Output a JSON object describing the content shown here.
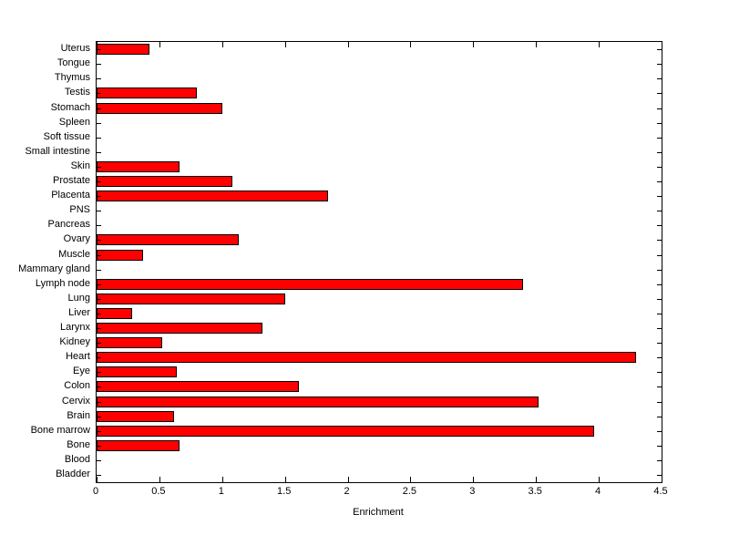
{
  "chart_data": {
    "type": "bar",
    "orientation": "horizontal",
    "title": "",
    "xlabel": "Enrichment",
    "ylabel": "",
    "xlim": [
      0,
      4.5
    ],
    "xticks": [
      0,
      0.5,
      1,
      1.5,
      2,
      2.5,
      3,
      3.5,
      4,
      4.5
    ],
    "xtick_labels": [
      "0",
      "0.5",
      "1",
      "1.5",
      "2",
      "2.5",
      "3",
      "3.5",
      "4",
      "4.5"
    ],
    "grid": false,
    "legend": "none",
    "bar_color": "#ff0000",
    "bar_edge_color": "#000000",
    "categories": [
      "Uterus",
      "Tongue",
      "Thymus",
      "Testis",
      "Stomach",
      "Spleen",
      "Soft tissue",
      "Small intestine",
      "Skin",
      "Prostate",
      "Placenta",
      "PNS",
      "Pancreas",
      "Ovary",
      "Muscle",
      "Mammary gland",
      "Lymph node",
      "Lung",
      "Liver",
      "Larynx",
      "Kidney",
      "Heart",
      "Eye",
      "Colon",
      "Cervix",
      "Brain",
      "Bone marrow",
      "Bone",
      "Blood",
      "Bladder"
    ],
    "values": [
      0.42,
      0,
      0,
      0.8,
      1.0,
      0,
      0,
      0,
      0.66,
      1.08,
      1.84,
      0,
      0,
      1.13,
      0.37,
      0,
      3.4,
      1.5,
      0.28,
      1.32,
      0.52,
      4.3,
      0.64,
      1.61,
      3.52,
      0.62,
      3.96,
      0.66,
      0,
      0
    ]
  }
}
